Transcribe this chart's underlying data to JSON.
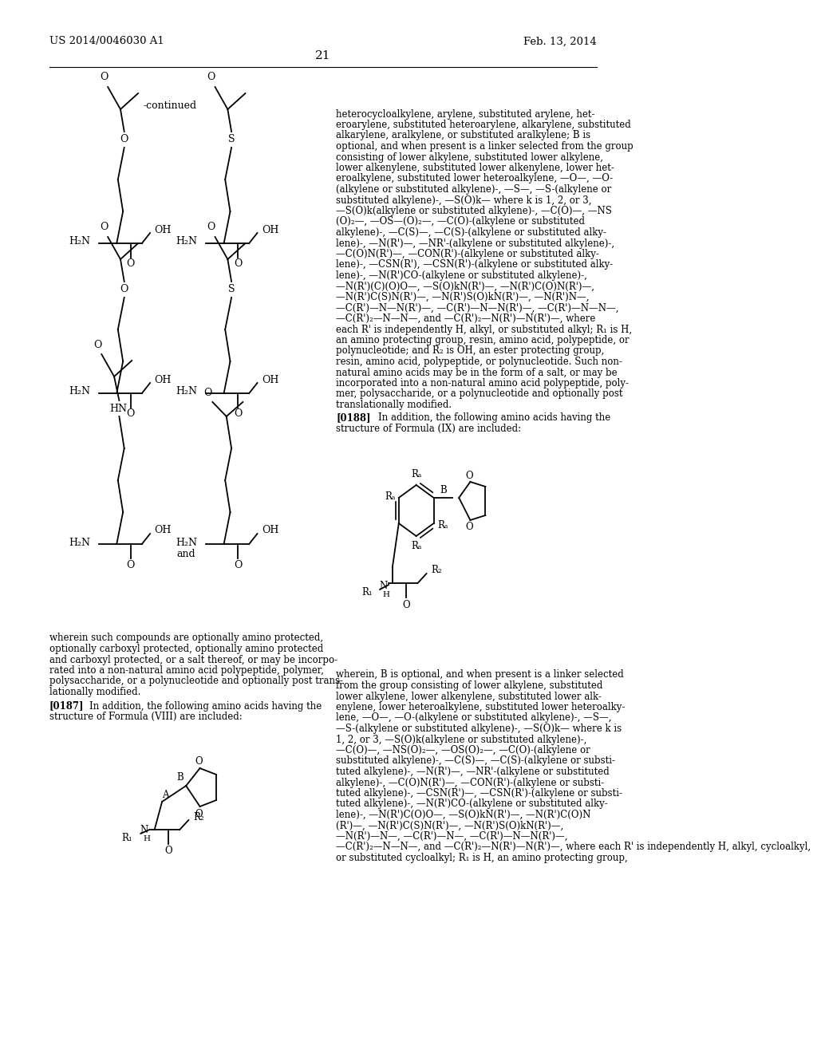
{
  "patent_number": "US 2014/0046030 A1",
  "patent_date": "Feb. 13, 2014",
  "page_number": "21",
  "bg": "#ffffff",
  "right_col_lines": [
    "heterocycloalkylene, arylene, substituted arylene, het-",
    "eroarylene, substituted heteroarylene, alkarylene, substituted",
    "alkarylene, aralkylene, or substituted aralkylene; B is",
    "optional, and when present is a linker selected from the group",
    "consisting of lower alkylene, substituted lower alkylene,",
    "lower alkenylene, substituted lower alkenylene, lower het-",
    "eroalkylene, substituted lower heteroalkylene, —O—, —O-",
    "(alkylene or substituted alkylene)-, —S—, —S-(alkylene or",
    "substituted alkylene)-, —S(O)k— where k is 1, 2, or 3,",
    "—S(O)k(alkylene or substituted alkylene)-, —C(O)—, —NS",
    "(O)₂—, —OS—(O)₂—, —C(O)-(alkylene or substituted",
    "alkylene)-, —C(S)—, —C(S)-(alkylene or substituted alky-",
    "lene)-, —N(R')—, —NR'-(alkylene or substituted alkylene)-,",
    "—C(O)N(R')—, —CON(R')-(alkylene or substituted alky-",
    "lene)-, —CSN(R'), —CSN(R')-(alkylene or substituted alky-",
    "lene)-, —N(R')CO-(alkylene or substituted alkylene)-,",
    "—N(R')(C)(O)O—, —S(O)kN(R')—, —N(R')C(O)N(R')—,",
    "—N(R')C(S)N(R')—, —N(R')S(O)kN(R')—, —N(R')N—,",
    "—C(R')—N—N(R')—, —C(R')—N—N(R')—, —C(R')—N—N—,",
    "—C(R')₂—N—N—, and —C(R')₂—N(R')—N(R')—, where",
    "each R' is independently H, alkyl, or substituted alkyl; R₁ is H,",
    "an amino protecting group, resin, amino acid, polypeptide, or",
    "polynucleotide; and R₂ is OH, an ester protecting group,",
    "resin, amino acid, polypeptide, or polynucleotide. Such non-",
    "natural amino acids may be in the form of a salt, or may be",
    "incorporated into a non-natural amino acid polypeptide, poly-",
    "mer, polysaccharide, or a polynucleotide and optionally post",
    "translationally modified."
  ],
  "left_body_lines": [
    "wherein such compounds are optionally amino protected,",
    "optionally carboxyl protected, optionally amino protected",
    "and carboxyl protected, or a salt thereof, or may be incorpo-",
    "rated into a non-natural amino acid polypeptide, polymer,",
    "polysaccharide, or a polynucleotide and optionally post trans-",
    "lationally modified."
  ],
  "right_bottom_lines": [
    "wherein, B is optional, and when present is a linker selected",
    "from the group consisting of lower alkylene, substituted",
    "lower alkylene, lower alkenylene, substituted lower alk-",
    "enylene, lower heteroalkylene, substituted lower heteroalky-",
    "lene, —O—, —O-(alkylene or substituted alkylene)-, —S—,",
    "—S-(alkylene or substituted alkylene)-, —S(O)k— where k is",
    "1, 2, or 3, —S(O)k(alkylene or substituted alkylene)-,",
    "—C(O)—, —NS(O)₂—, —OS(O)₂—, —C(O)-(alkylene or",
    "substituted alkylene)-, —C(S)—, —C(S)-(alkylene or substi-",
    "tuted alkylene)-, —N(R')—, —NR'-(alkylene or substituted",
    "alkylene)-, —C(O)N(R')—, —CON(R')-(alkylene or substi-",
    "tuted alkylene)-, —CSN(R')—, —CSN(R')-(alkylene or substi-",
    "tuted alkylene)-, —N(R')CO-(alkylene or substituted alky-",
    "lene)-, —N(R')C(O)O—, —S(O)kN(R')—, —N(R')C(O)N",
    "(R')—, —N(R')C(S)N(R')—, —N(R')S(O)kN(R')—,",
    "—N(R')—N—, —C(R')—N—, —C(R')—N—N(R')—,",
    "—C(R')₂—N—N—, and —C(R')₂—N(R')—N(R')—, where each R' is independently H, alkyl, cycloalkyl,",
    "or substituted cycloalkyl; R₁ is H, an amino protecting group,"
  ]
}
